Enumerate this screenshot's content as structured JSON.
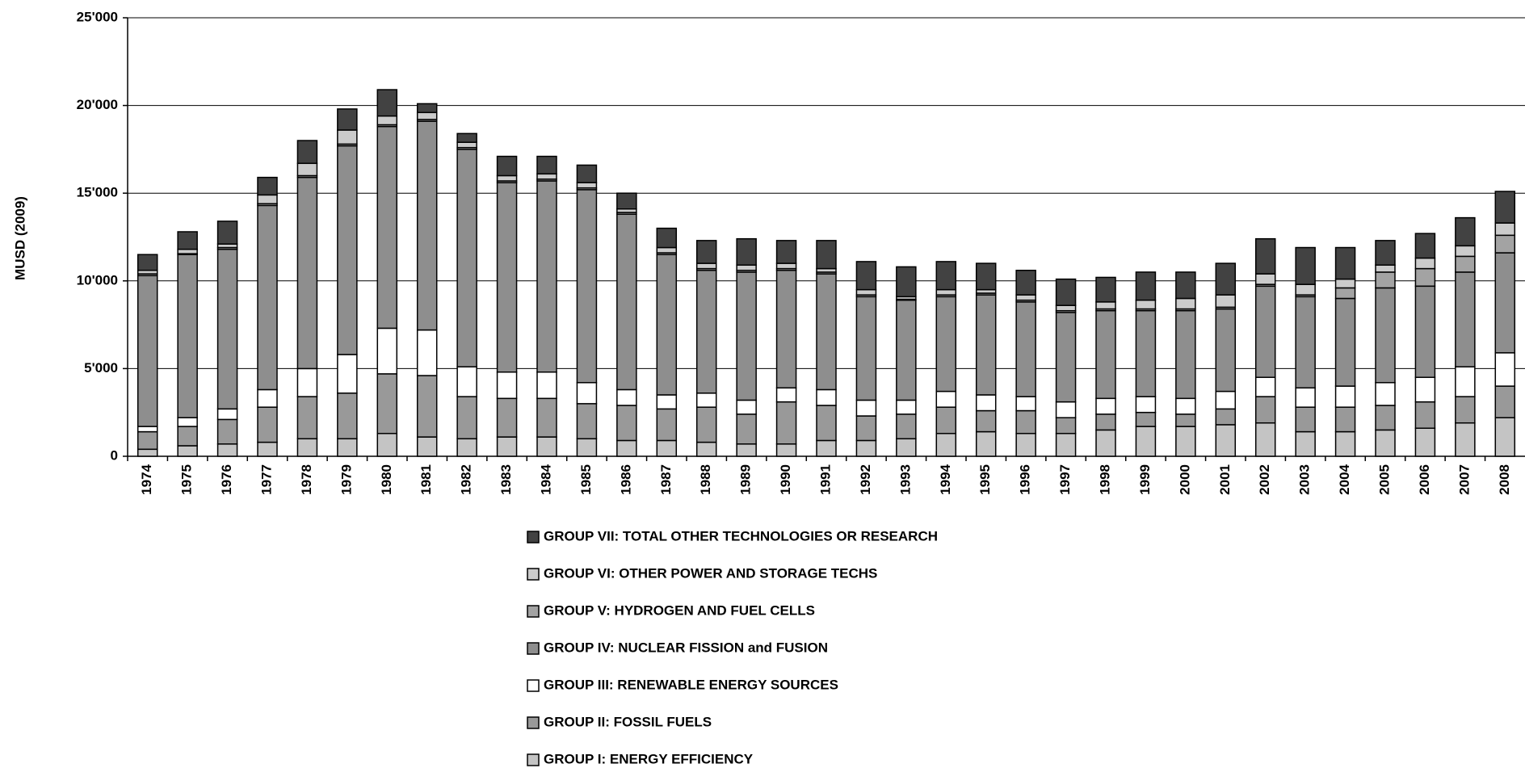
{
  "chart_data": {
    "type": "stacked_bar",
    "y_label": "MUSD (2009)",
    "categories": [
      "1974",
      "1975",
      "1976",
      "1977",
      "1978",
      "1979",
      "1980",
      "1981",
      "1982",
      "1983",
      "1984",
      "1985",
      "1986",
      "1987",
      "1988",
      "1989",
      "1990",
      "1991",
      "1992",
      "1993",
      "1994",
      "1995",
      "1996",
      "1997",
      "1998",
      "1999",
      "2000",
      "2001",
      "2002",
      "2003",
      "2004",
      "2005",
      "2006",
      "2007",
      "2008"
    ],
    "ylim": [
      0,
      25000
    ],
    "yticks": [
      0,
      {
        "value": 5000,
        "label": "5'000"
      },
      {
        "value": 10000,
        "label": "10'000"
      },
      {
        "value": 15000,
        "label": "15'000"
      },
      {
        "value": 20000,
        "label": "20'000"
      },
      {
        "value": 25000,
        "label": "25'000"
      }
    ],
    "grid": true,
    "series": [
      {
        "name": "GROUP I: ENERGY EFFICIENCY",
        "color": "#c4c4c4",
        "values": [
          400,
          600,
          700,
          800,
          1000,
          1000,
          1300,
          1100,
          1000,
          1100,
          1100,
          1000,
          900,
          900,
          800,
          700,
          700,
          900,
          900,
          1000,
          1300,
          1400,
          1300,
          1300,
          1500,
          1700,
          1700,
          1800,
          1900,
          1400,
          1400,
          1500,
          1600,
          1900,
          2200
        ]
      },
      {
        "name": "GROUP II: FOSSIL FUELS",
        "color": "#999999",
        "values": [
          1000,
          1100,
          1400,
          2000,
          2400,
          2600,
          3400,
          3500,
          2400,
          2200,
          2200,
          2000,
          2000,
          1800,
          2000,
          1700,
          2400,
          2000,
          1400,
          1400,
          1500,
          1200,
          1300,
          900,
          900,
          800,
          700,
          900,
          1500,
          1400,
          1400,
          1400,
          1500,
          1500,
          1800
        ]
      },
      {
        "name": "GROUP III: RENEWABLE ENERGY SOURCES",
        "color": "#ffffff",
        "values": [
          300,
          500,
          600,
          1000,
          1600,
          2200,
          2600,
          2600,
          1700,
          1500,
          1500,
          1200,
          900,
          800,
          800,
          800,
          800,
          900,
          900,
          800,
          900,
          900,
          800,
          900,
          900,
          900,
          900,
          1000,
          1100,
          1100,
          1200,
          1300,
          1400,
          1700,
          1900
        ]
      },
      {
        "name": "GROUP IV: NUCLEAR FISSION and FUSION",
        "color": "#8e8e8e",
        "values": [
          8600,
          9300,
          9100,
          10500,
          10900,
          11900,
          11500,
          11900,
          12400,
          10800,
          10900,
          11000,
          10000,
          8000,
          7000,
          7300,
          6700,
          6600,
          5900,
          5700,
          5400,
          5700,
          5400,
          5100,
          5000,
          4900,
          5000,
          4700,
          5200,
          5200,
          5000,
          5400,
          5200,
          5400,
          5700
        ]
      },
      {
        "name": "GROUP V: HYDROGEN AND FUEL CELLS",
        "color": "#a3a3a3",
        "values": [
          100,
          50,
          100,
          100,
          100,
          100,
          100,
          100,
          100,
          100,
          100,
          100,
          100,
          100,
          100,
          100,
          100,
          100,
          100,
          50,
          100,
          100,
          100,
          100,
          100,
          100,
          100,
          100,
          100,
          100,
          600,
          900,
          1000,
          900,
          1000
        ]
      },
      {
        "name": "GROUP VI: OTHER POWER AND STORAGE TECHS",
        "color": "#cbcbcb",
        "values": [
          200,
          250,
          200,
          500,
          700,
          800,
          500,
          400,
          300,
          300,
          300,
          300,
          200,
          300,
          300,
          300,
          300,
          200,
          300,
          150,
          300,
          200,
          300,
          300,
          400,
          500,
          600,
          700,
          600,
          600,
          500,
          400,
          600,
          600,
          700
        ]
      },
      {
        "name": "GROUP VII: TOTAL OTHER TECHNOLOGIES OR RESEARCH",
        "color": "#424242",
        "values": [
          900,
          1000,
          1300,
          1000,
          1300,
          1200,
          1500,
          500,
          500,
          1100,
          1000,
          1000,
          900,
          1100,
          1300,
          1500,
          1300,
          1600,
          1600,
          1700,
          1600,
          1500,
          1400,
          1500,
          1400,
          1600,
          1500,
          1800,
          2000,
          2100,
          1800,
          1400,
          1400,
          1600,
          1800
        ]
      }
    ]
  }
}
